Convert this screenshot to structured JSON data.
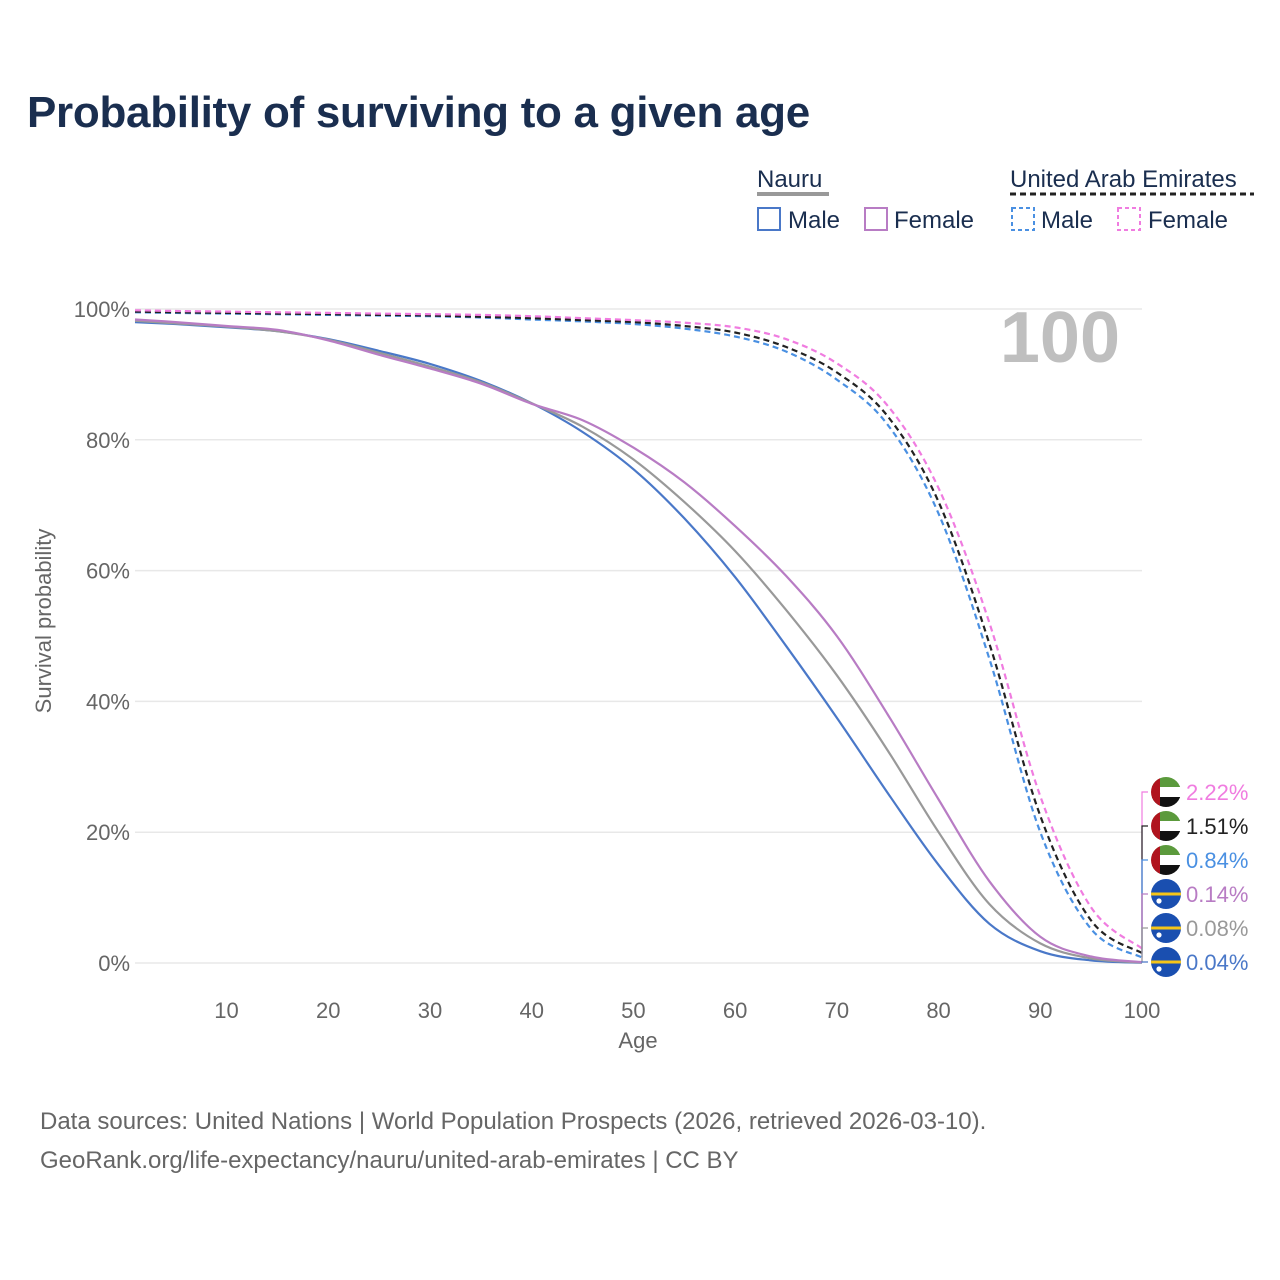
{
  "title": "Probability of surviving to a given age",
  "footer": {
    "line1": "Data sources: United Nations | World Population Prospects (2026, retrieved 2026-03-10).",
    "line2": "GeoRank.org/life-expectancy/nauru/united-arab-emirates | CC BY"
  },
  "legend": {
    "groups": [
      {
        "name": "Nauru",
        "line_color": "#999999",
        "dashed": false,
        "items": [
          "Male",
          "Female"
        ]
      },
      {
        "name": "United Arab Emirates",
        "line_color": "#222222",
        "dashed": true,
        "items": [
          "Male",
          "Female"
        ]
      }
    ]
  },
  "chart_data": {
    "type": "line",
    "title": "Probability of surviving to a given age",
    "xlabel": "Age",
    "ylabel": "Survival probability",
    "xlim": [
      1,
      100
    ],
    "ylim": [
      0,
      100
    ],
    "x_ticks": [
      10,
      20,
      30,
      40,
      50,
      60,
      70,
      80,
      90,
      100
    ],
    "y_ticks": [
      0,
      20,
      40,
      60,
      80,
      100
    ],
    "y_tick_labels": [
      "0%",
      "20%",
      "40%",
      "60%",
      "80%",
      "100%"
    ],
    "grid": true,
    "year_label": "100",
    "x": [
      1,
      5,
      10,
      15,
      20,
      25,
      30,
      35,
      40,
      45,
      50,
      55,
      60,
      65,
      70,
      75,
      80,
      85,
      90,
      95,
      100
    ],
    "series": [
      {
        "name": "United Arab Emirates Female",
        "country": "United Arab Emirates",
        "sex": "Female",
        "color": "#f07ce0",
        "dashed": true,
        "values": [
          99.8,
          99.7,
          99.6,
          99.5,
          99.4,
          99.3,
          99.2,
          99.1,
          98.9,
          98.6,
          98.3,
          97.9,
          97.2,
          95.4,
          91.7,
          85.2,
          72.6,
          52.0,
          25.5,
          8.5,
          2.22
        ],
        "end_label": "2.22%"
      },
      {
        "name": "United Arab Emirates (total)",
        "country": "United Arab Emirates",
        "sex": "Total",
        "color": "#222222",
        "dashed": true,
        "values": [
          99.6,
          99.5,
          99.4,
          99.3,
          99.2,
          99.1,
          99.0,
          98.8,
          98.6,
          98.3,
          98.0,
          97.4,
          96.4,
          94.2,
          90.3,
          83.6,
          70.5,
          48.8,
          22.5,
          6.5,
          1.51
        ],
        "end_label": "1.51%"
      },
      {
        "name": "United Arab Emirates Male",
        "country": "United Arab Emirates",
        "sex": "Male",
        "color": "#4a90e2",
        "dashed": true,
        "values": [
          99.5,
          99.4,
          99.3,
          99.2,
          99.1,
          99.0,
          98.9,
          98.7,
          98.4,
          98.1,
          97.7,
          97.0,
          95.8,
          93.5,
          89.2,
          82.3,
          68.7,
          46.5,
          20.0,
          5.2,
          0.84
        ],
        "end_label": "0.84%"
      },
      {
        "name": "Nauru Female",
        "country": "Nauru",
        "sex": "Female",
        "color": "#b87cc4",
        "dashed": false,
        "values": [
          98.4,
          98.0,
          97.4,
          96.8,
          95.2,
          93.0,
          90.9,
          88.6,
          85.5,
          83.0,
          78.8,
          73.5,
          66.8,
          59.2,
          50.0,
          38.0,
          25.0,
          12.5,
          4.0,
          1.0,
          0.14
        ],
        "end_label": "0.14%"
      },
      {
        "name": "Nauru (total)",
        "country": "Nauru",
        "sex": "Total",
        "color": "#999999",
        "dashed": false,
        "values": [
          98.2,
          97.8,
          97.3,
          96.6,
          95.3,
          93.3,
          91.2,
          88.8,
          85.6,
          82.0,
          77.0,
          70.5,
          63.0,
          54.0,
          44.0,
          32.5,
          20.0,
          9.0,
          3.0,
          0.7,
          0.08
        ],
        "end_label": "0.08%"
      },
      {
        "name": "Nauru Male",
        "country": "Nauru",
        "sex": "Male",
        "color": "#4a78c8",
        "dashed": false,
        "values": [
          98.0,
          97.7,
          97.2,
          96.6,
          95.4,
          93.6,
          91.6,
          89.0,
          85.6,
          81.2,
          75.5,
          68.0,
          59.0,
          48.5,
          37.5,
          26.0,
          15.0,
          6.0,
          1.8,
          0.4,
          0.04
        ],
        "end_label": "0.04%"
      }
    ]
  }
}
